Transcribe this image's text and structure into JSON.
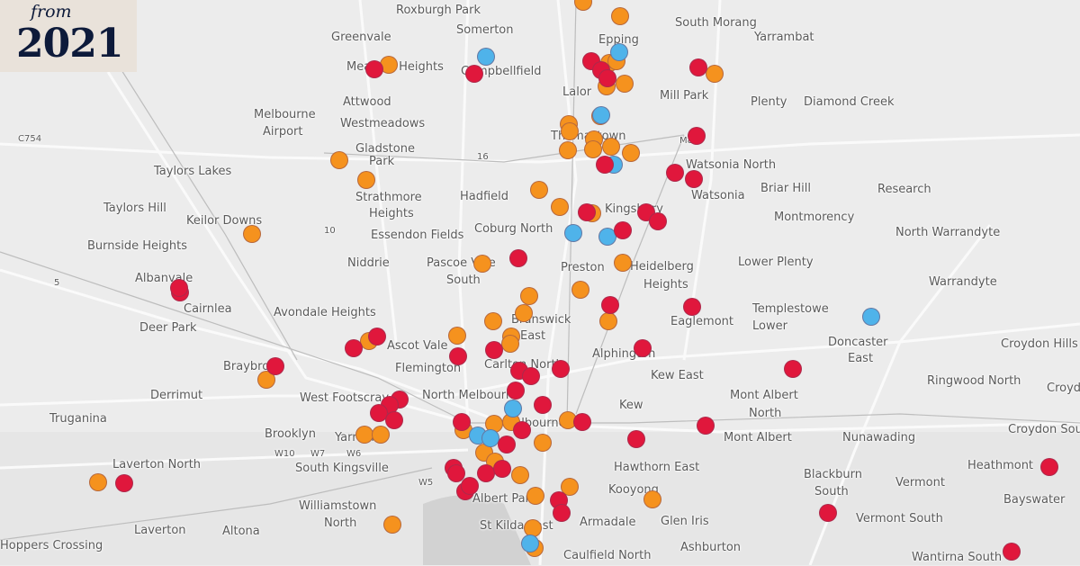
{
  "badge": {
    "prefix": "from",
    "year": "2021"
  },
  "colors": {
    "red": "#e0173c",
    "orange": "#f5921e",
    "blue": "#4fb3ea",
    "background": "#ececec"
  },
  "road_labels": [
    "C754",
    "16",
    "10",
    "5",
    "W10",
    "W7",
    "W6",
    "W5",
    "M80"
  ],
  "place_labels": [
    "Roxburgh Park",
    "Somerton",
    "South Morang",
    "Yarrambat",
    "Greenvale",
    "Epping",
    "Meadow Heights",
    "Campbellfield",
    "Lalor",
    "Mill Park",
    "Plenty",
    "Diamond Creek",
    "Attwood",
    "Melbourne",
    "Airport",
    "Westmeadows",
    "Gladstone",
    "Park",
    "Thomastown",
    "Taylors Lakes",
    "Watsonia North",
    "Strathmore",
    "Heights",
    "Hadfield",
    "Briar Hill",
    "Research",
    "Watsonia",
    "Taylors Hill",
    "Keilor Downs",
    "Kingsbury",
    "Montmorency",
    "Coburg North",
    "Essendon Fields",
    "North Warrandyte",
    "Burnside Heights",
    "Niddrie",
    "Pascoe Vale",
    "South",
    "Preston",
    "Heidelberg",
    "Heights",
    "Lower Plenty",
    "Warrandyte",
    "Albanvale",
    "Cairnlea",
    "Avondale Heights",
    "Templestowe",
    "Lower",
    "Deer Park",
    "Brunswick",
    "East",
    "Eaglemont",
    "Doncaster",
    "East",
    "Croydon Hills",
    "Ascot Vale",
    "Alphington",
    "Braybrook",
    "Carlton North",
    "Flemington",
    "Kew East",
    "Ringwood North",
    "Croydon",
    "Derrimut",
    "West Footscray",
    "North Melbourne",
    "Mont Albert",
    "North",
    "Kew",
    "Truganina",
    "Croydon South",
    "Brooklyn",
    "Yarraville",
    "Mont Albert",
    "Nunawading",
    "Laverton North",
    "South Kingsville",
    "Hawthorn East",
    "Heathmont",
    "Blackburn",
    "South",
    "Vermont",
    "Albert Park",
    "Kooyong",
    "Bayswater",
    "Williamstown",
    "North",
    "Glen Iris",
    "Vermont South",
    "Armadale",
    "St Kilda East",
    "Laverton",
    "Altona",
    "Ashburton",
    "Hoppers Crossing",
    "Caulfield North",
    "Wantirna South",
    "Melbourne"
  ]
}
